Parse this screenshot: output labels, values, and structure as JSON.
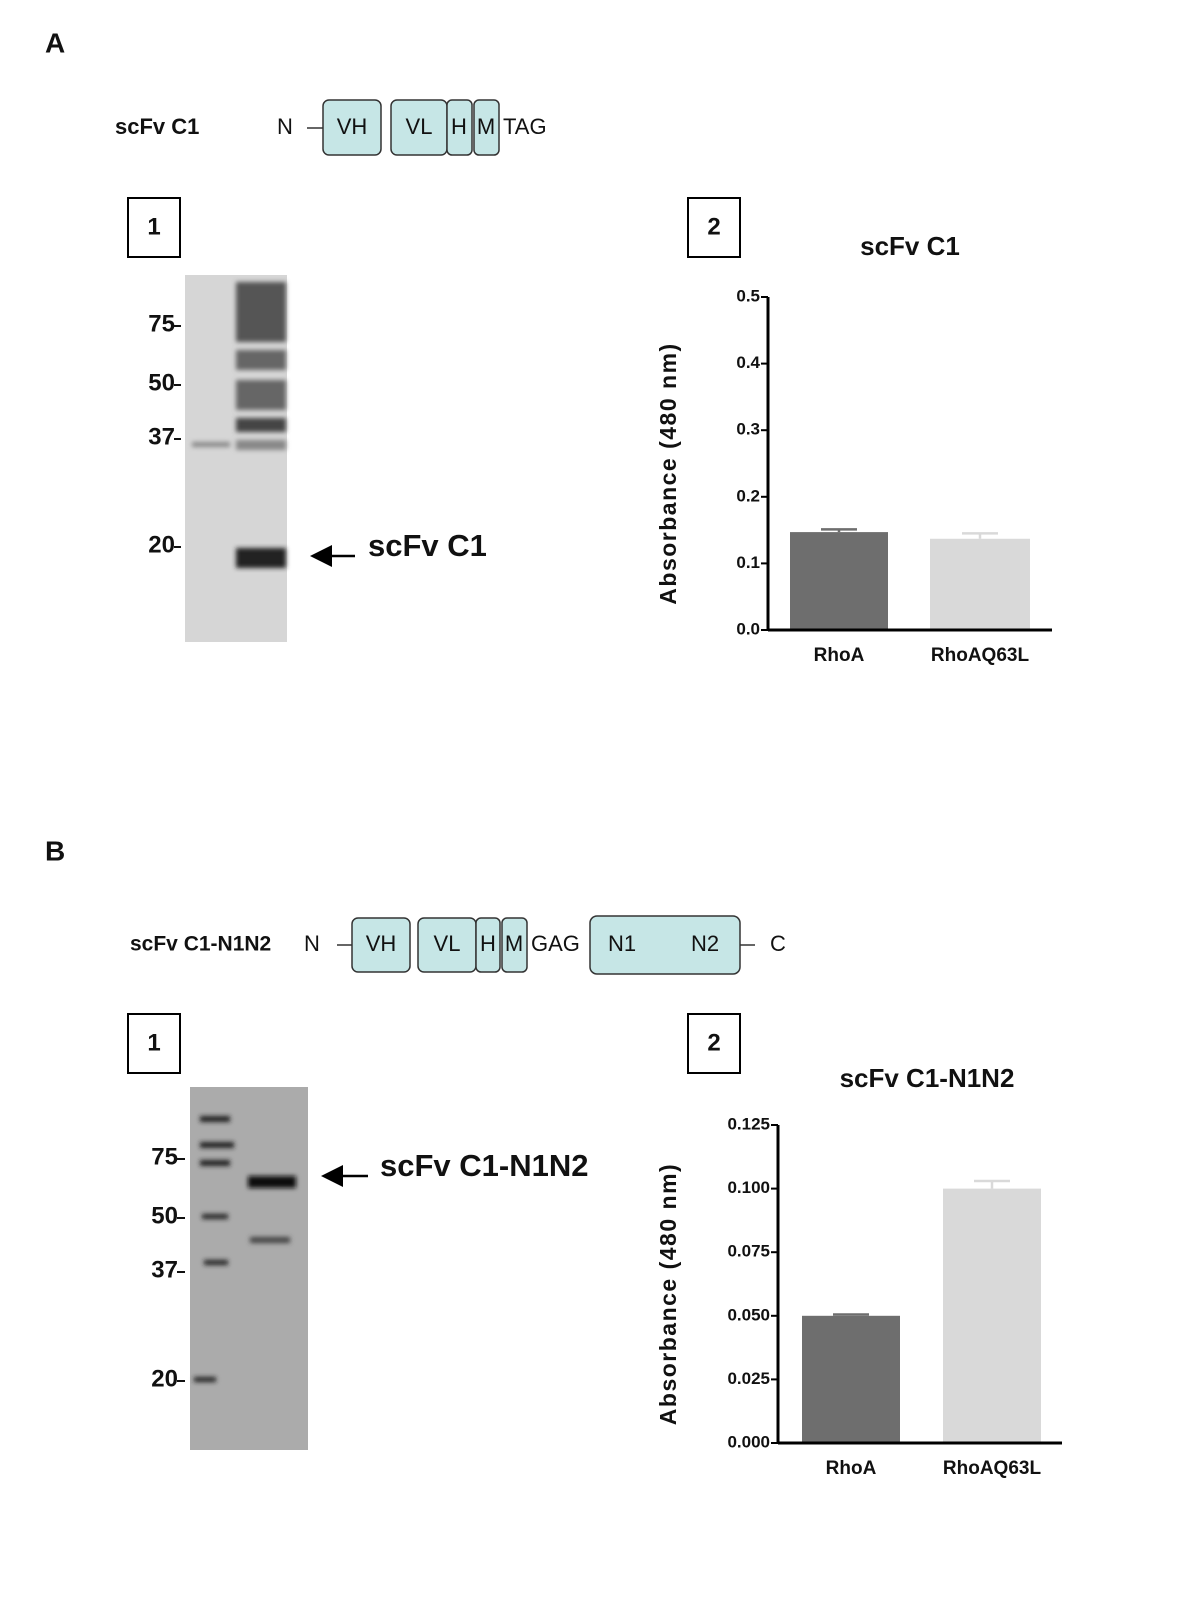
{
  "panels": [
    {
      "label": "A",
      "construct": {
        "name": "scFv C1",
        "n": "N",
        "domains": [
          "VH",
          "VL",
          "H",
          "M"
        ],
        "tail": "TAG"
      },
      "blot": {
        "label": "1",
        "markers": [
          "75",
          "50",
          "37",
          "20"
        ],
        "arrow_label": "scFv C1"
      },
      "chart_label": "2"
    },
    {
      "label": "B",
      "construct": {
        "name": "scFv C1-N1N2",
        "n": "N",
        "domains": [
          "VH",
          "VL",
          "H",
          "M"
        ],
        "linker": "GAG",
        "fusion": [
          "N1",
          "N2"
        ],
        "c": "C"
      },
      "blot": {
        "label": "1",
        "markers": [
          "75",
          "50",
          "37",
          "20"
        ],
        "arrow_label": "scFv C1-N1N2"
      },
      "chart_label": "2"
    }
  ],
  "chart_data": [
    {
      "type": "bar",
      "title": "scFv C1",
      "y_label": "Absorbance (480 nm)",
      "categories": [
        "RhoA",
        "RhoAQ63L"
      ],
      "values": [
        0.147,
        0.137
      ],
      "errors": [
        0.004,
        0.008
      ],
      "colors": [
        "#6e6e6e",
        "#d9d9d9"
      ],
      "ylim": [
        0,
        0.5
      ],
      "yticks": [
        {
          "value": 0,
          "label": "0.0"
        },
        0.1,
        0.2,
        0.3,
        0.4,
        0.5
      ]
    },
    {
      "type": "bar",
      "title": "scFv C1-N1N2",
      "y_label": "Absorbance (480 nm)",
      "categories": [
        "RhoA",
        "RhoAQ63L"
      ],
      "values": [
        0.05,
        0.1
      ],
      "errors": [
        0.0005,
        0.003
      ],
      "colors": [
        "#6e6e6e",
        "#d9d9d9"
      ],
      "ylim": [
        0,
        0.125
      ],
      "yticks": [
        {
          "value": 0,
          "label": "0.000"
        },
        0.025,
        {
          "value": 0.05,
          "label": "0.050"
        },
        0.075,
        {
          "value": 0.1,
          "label": "0.100"
        },
        0.125
      ]
    }
  ]
}
